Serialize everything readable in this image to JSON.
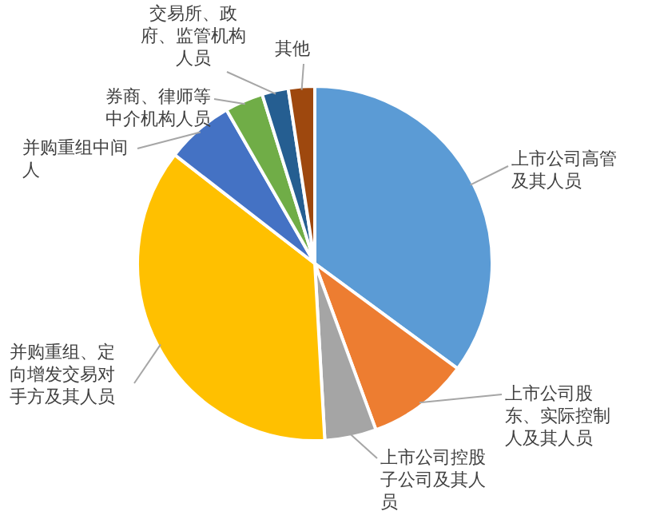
{
  "chart_data": {
    "type": "pie",
    "categories": [
      "上市公司高管及其人员",
      "上市公司股东、实际控制人及其人员",
      "上市公司控股子公司及其人员",
      "并购重组、定向增发交易对手方及其人员",
      "并购重组中间人",
      "券商、律师等中介机构人员",
      "交易所、政府、监管机构人员",
      "其他"
    ],
    "values": [
      35.1,
      9.3,
      4.7,
      36.4,
      6.2,
      3.5,
      2.4,
      2.4
    ],
    "colors": [
      "#5b9bd5",
      "#ed7d31",
      "#a5a5a5",
      "#ffc000",
      "#4472c4",
      "#70ad47",
      "#255e91",
      "#9e480e"
    ]
  }
}
